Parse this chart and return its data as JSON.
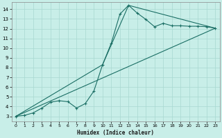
{
  "xlabel": "Humidex (Indice chaleur)",
  "bg_color": "#c8eee8",
  "line_color": "#1a6e64",
  "grid_color": "#a8d8d0",
  "xlim": [
    -0.5,
    23.5
  ],
  "ylim": [
    2.5,
    14.7
  ],
  "xticks": [
    0,
    1,
    2,
    3,
    4,
    5,
    6,
    7,
    8,
    9,
    10,
    11,
    12,
    13,
    14,
    15,
    16,
    17,
    18,
    19,
    20,
    21,
    22,
    23
  ],
  "yticks": [
    3,
    4,
    5,
    6,
    7,
    8,
    9,
    10,
    11,
    12,
    13,
    14
  ],
  "line1_x": [
    0,
    1,
    2,
    3,
    4,
    5,
    6,
    7,
    8,
    9,
    10,
    11,
    12,
    13,
    14,
    15,
    16,
    17,
    18,
    19,
    20,
    21,
    22,
    23
  ],
  "line1_y": [
    3.0,
    3.1,
    3.35,
    3.85,
    4.45,
    4.6,
    4.5,
    3.85,
    4.3,
    5.6,
    8.3,
    10.5,
    13.5,
    14.4,
    13.6,
    12.95,
    12.2,
    12.55,
    12.3,
    12.3,
    12.25,
    12.25,
    12.2,
    12.05
  ],
  "line2_x": [
    0,
    10,
    13,
    23
  ],
  "line2_y": [
    3.0,
    8.3,
    14.4,
    12.05
  ],
  "line3_x": [
    0,
    23
  ],
  "line3_y": [
    3.0,
    12.05
  ],
  "marker": "+"
}
